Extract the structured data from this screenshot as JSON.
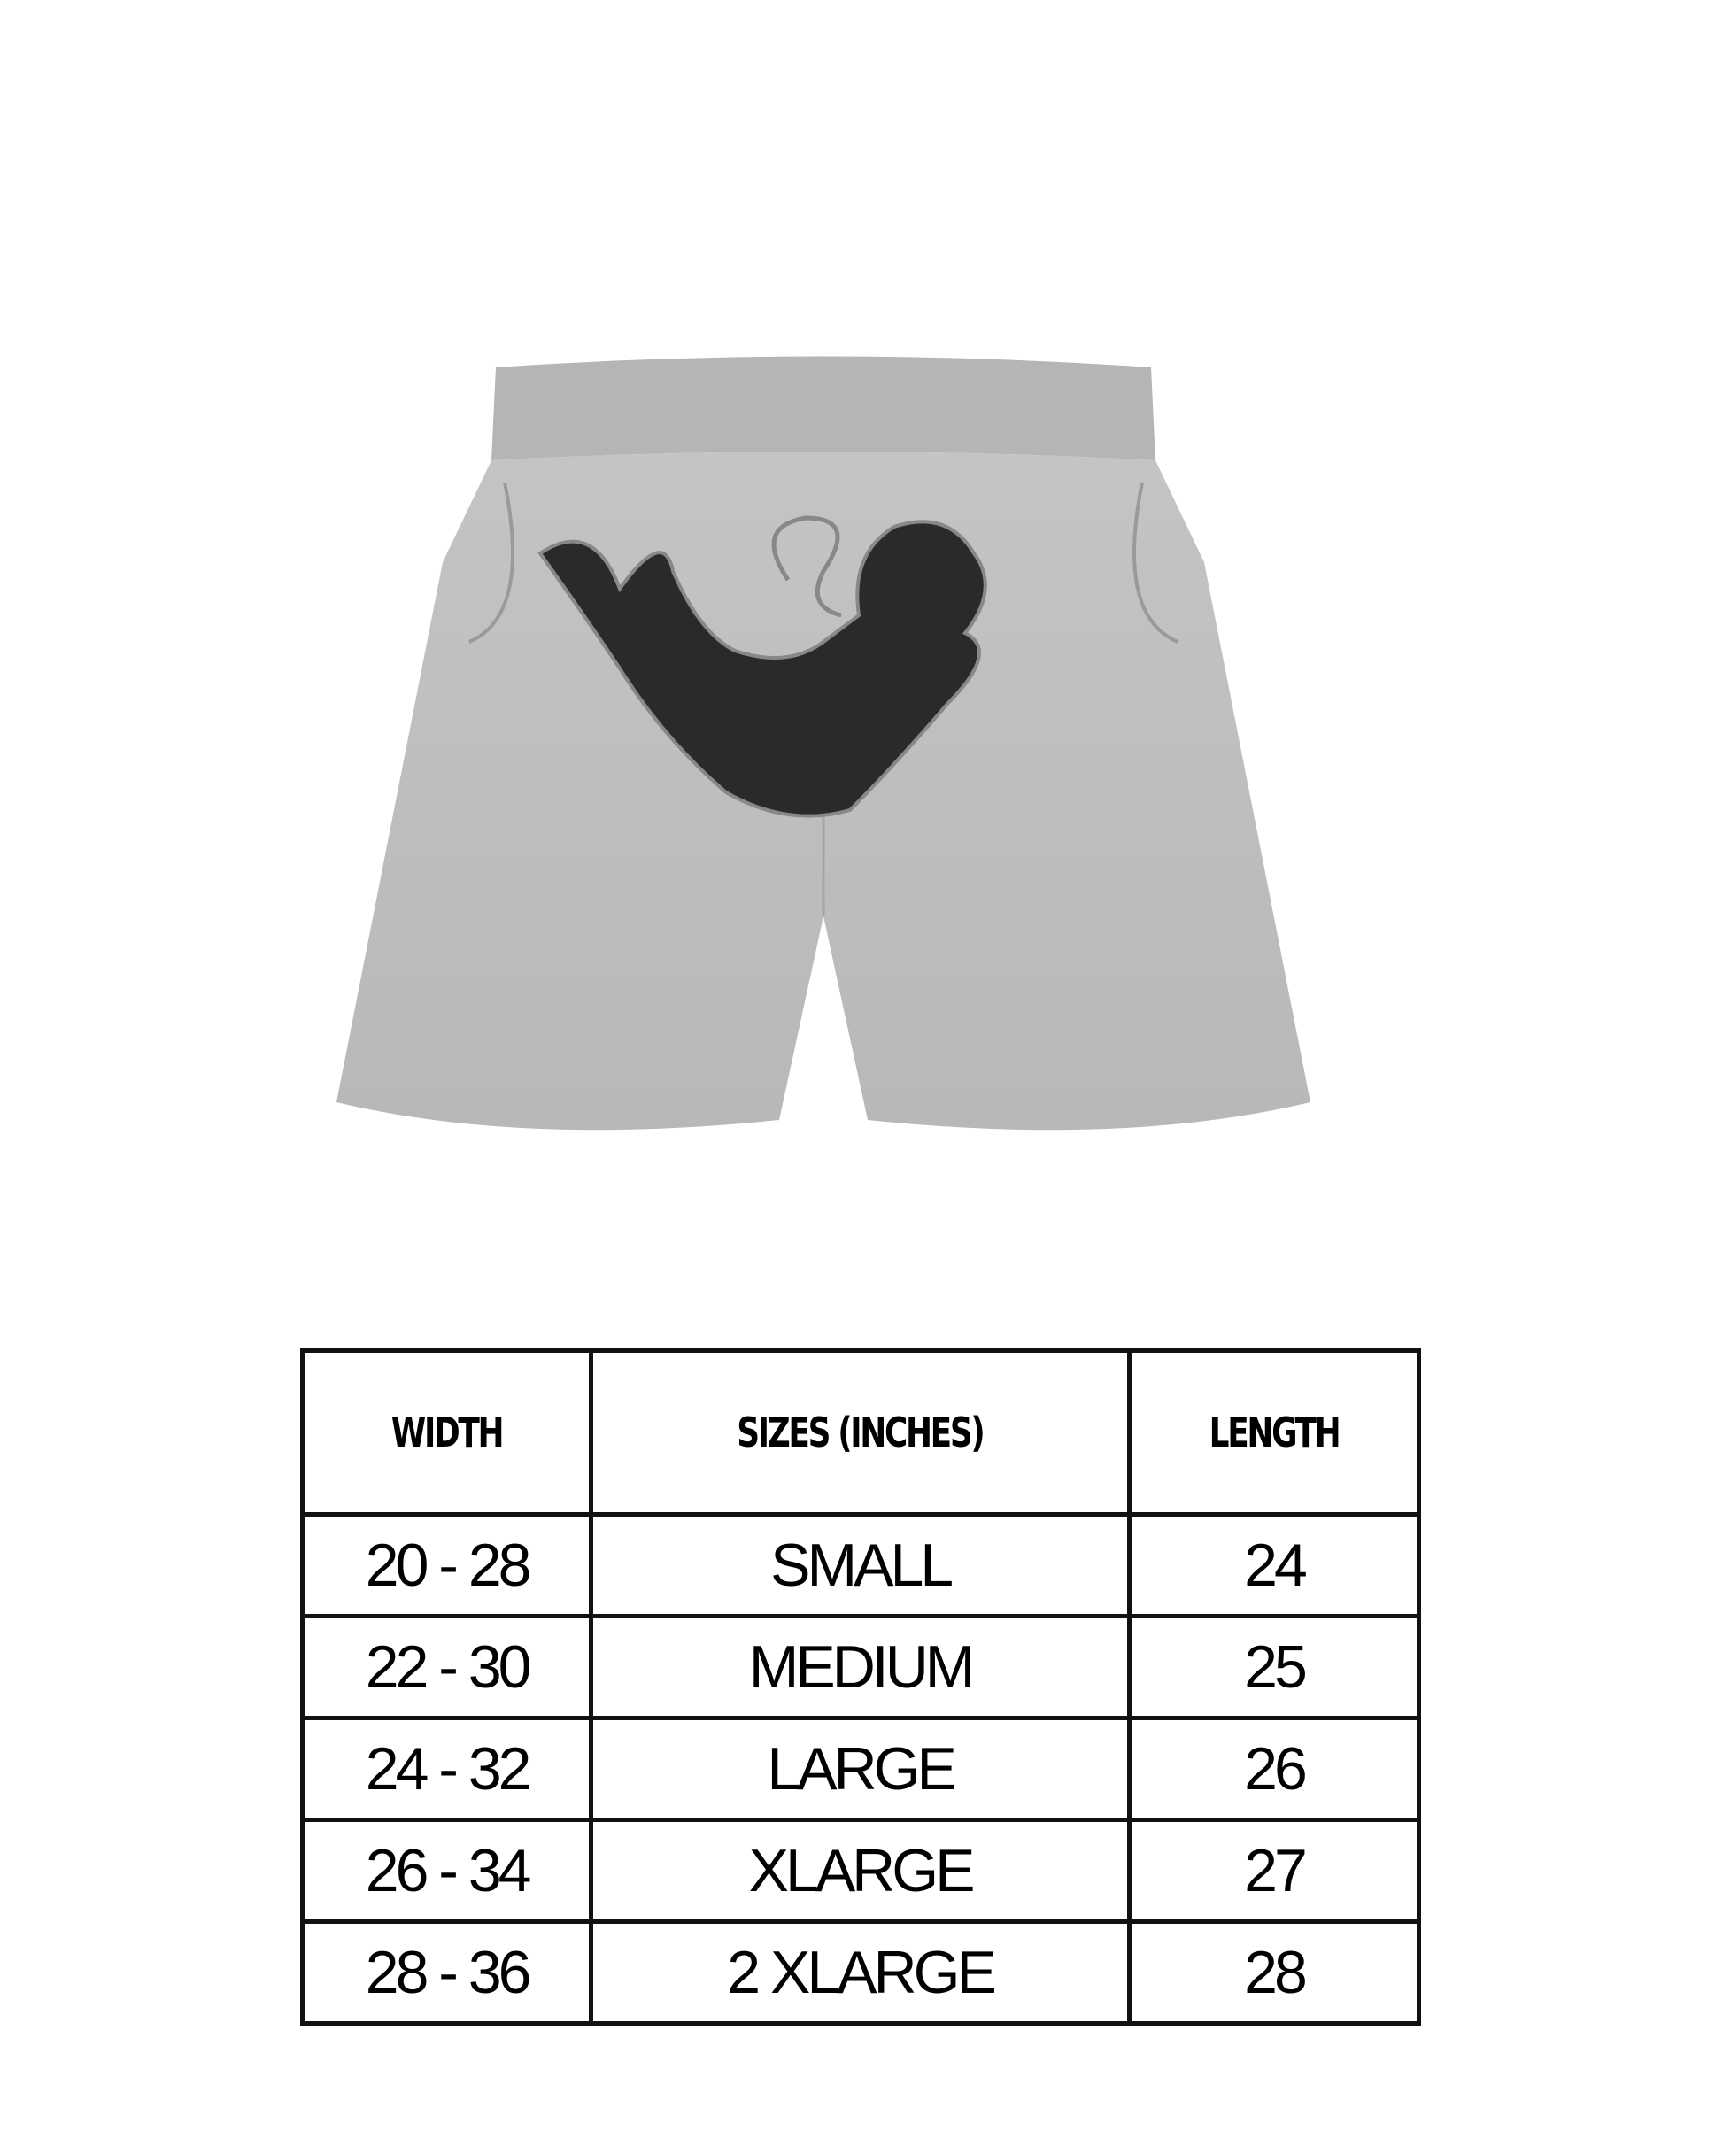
{
  "product_image": {
    "alt_kind": "grey sweat shorts with black silhouette patch",
    "fabric_color": "#bdbdbd",
    "patch_color": "#2a2a2a"
  },
  "size_table": {
    "headers": [
      "WIDTH",
      "SIZES (INCHES)",
      "LENGTH"
    ],
    "rows": [
      {
        "width": "20 - 28",
        "size": "SMALL",
        "length": "24"
      },
      {
        "width": "22 - 30",
        "size": "MEDIUM",
        "length": "25"
      },
      {
        "width": "24 - 32",
        "size": "LARGE",
        "length": "26"
      },
      {
        "width": "26 - 34",
        "size": "XLARGE",
        "length": "27"
      },
      {
        "width": "28 - 36",
        "size": "2 XLARGE",
        "length": "28"
      }
    ]
  }
}
